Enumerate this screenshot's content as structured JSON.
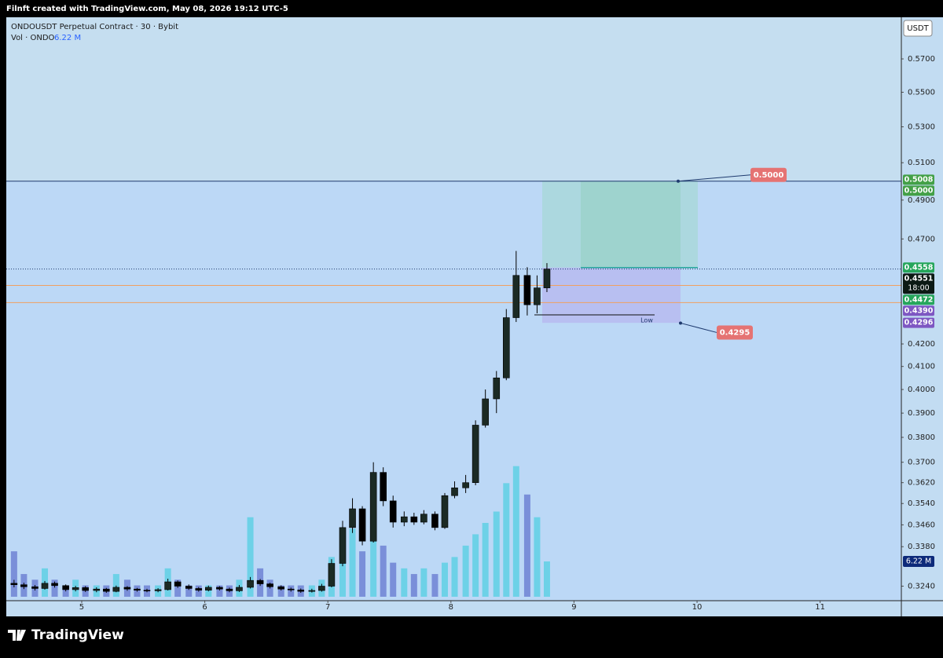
{
  "header": {
    "credit": "Filnft created with TradingView.com, May 08, 2026 19:12 UTC-5",
    "symbol": "ONDOUSDT Perpetual Contract · 30 · Bybit",
    "vol_label": "Vol · ONDO",
    "currency": "USDT",
    "brand": "TradingView"
  },
  "chart_data": {
    "type": "candlestick",
    "log": true,
    "x": [
      4.45,
      4.53,
      4.62,
      4.7,
      4.78,
      4.87,
      4.95,
      5.03,
      5.12,
      5.2,
      5.28,
      5.37,
      5.45,
      5.53,
      5.62,
      5.7,
      5.78,
      5.87,
      5.95,
      6.03,
      6.12,
      6.2,
      6.28,
      6.37,
      6.45,
      6.53,
      6.62,
      6.7,
      6.78,
      6.87,
      6.95,
      7.03,
      7.12,
      7.2,
      7.28,
      7.37,
      7.45,
      7.53,
      7.62,
      7.7,
      7.78,
      7.87,
      7.95,
      8.03,
      8.12,
      8.2,
      8.28,
      8.37,
      8.45,
      8.53,
      8.62,
      8.7,
      8.78
    ],
    "ohlc": [
      [
        0.325,
        0.3262,
        0.3236,
        0.3245
      ],
      [
        0.3245,
        0.3252,
        0.323,
        0.3238
      ],
      [
        0.3238,
        0.3244,
        0.3225,
        0.3232
      ],
      [
        0.3232,
        0.3258,
        0.3228,
        0.325
      ],
      [
        0.325,
        0.3256,
        0.3235,
        0.3242
      ],
      [
        0.3242,
        0.3246,
        0.3222,
        0.3228
      ],
      [
        0.3228,
        0.3241,
        0.3222,
        0.3235
      ],
      [
        0.3235,
        0.324,
        0.322,
        0.3225
      ],
      [
        0.3225,
        0.3236,
        0.3219,
        0.323
      ],
      [
        0.323,
        0.3234,
        0.3217,
        0.3222
      ],
      [
        0.3222,
        0.3242,
        0.3219,
        0.3236
      ],
      [
        0.3236,
        0.324,
        0.3224,
        0.323
      ],
      [
        0.323,
        0.3234,
        0.3221,
        0.3226
      ],
      [
        0.3226,
        0.3231,
        0.3219,
        0.3224
      ],
      [
        0.3224,
        0.3233,
        0.3219,
        0.3228
      ],
      [
        0.3228,
        0.3266,
        0.3225,
        0.3255
      ],
      [
        0.3255,
        0.326,
        0.3234,
        0.324
      ],
      [
        0.324,
        0.3246,
        0.3227,
        0.3232
      ],
      [
        0.3232,
        0.3237,
        0.3221,
        0.3226
      ],
      [
        0.3226,
        0.3242,
        0.3222,
        0.3236
      ],
      [
        0.3236,
        0.324,
        0.3225,
        0.323
      ],
      [
        0.323,
        0.3235,
        0.3219,
        0.3224
      ],
      [
        0.3224,
        0.3244,
        0.322,
        0.3236
      ],
      [
        0.3236,
        0.3272,
        0.3232,
        0.326
      ],
      [
        0.326,
        0.3265,
        0.3241,
        0.3248
      ],
      [
        0.3248,
        0.3252,
        0.3232,
        0.3238
      ],
      [
        0.3238,
        0.3243,
        0.3225,
        0.323
      ],
      [
        0.323,
        0.3235,
        0.3221,
        0.3227
      ],
      [
        0.3227,
        0.3232,
        0.3217,
        0.3222
      ],
      [
        0.3222,
        0.3231,
        0.3218,
        0.3225
      ],
      [
        0.3225,
        0.3248,
        0.3221,
        0.324
      ],
      [
        0.324,
        0.3335,
        0.3236,
        0.332
      ],
      [
        0.332,
        0.3475,
        0.331,
        0.345
      ],
      [
        0.345,
        0.356,
        0.343,
        0.352
      ],
      [
        0.352,
        0.353,
        0.3385,
        0.34
      ],
      [
        0.34,
        0.37,
        0.3395,
        0.366
      ],
      [
        0.366,
        0.368,
        0.353,
        0.355
      ],
      [
        0.355,
        0.357,
        0.345,
        0.347
      ],
      [
        0.347,
        0.351,
        0.3455,
        0.349
      ],
      [
        0.349,
        0.3505,
        0.346,
        0.347
      ],
      [
        0.347,
        0.3515,
        0.3462,
        0.35
      ],
      [
        0.35,
        0.351,
        0.344,
        0.345
      ],
      [
        0.345,
        0.358,
        0.3445,
        0.357
      ],
      [
        0.357,
        0.3625,
        0.356,
        0.36
      ],
      [
        0.36,
        0.365,
        0.358,
        0.362
      ],
      [
        0.362,
        0.387,
        0.361,
        0.385
      ],
      [
        0.385,
        0.4,
        0.384,
        0.396
      ],
      [
        0.396,
        0.408,
        0.39,
        0.405
      ],
      [
        0.405,
        0.436,
        0.404,
        0.432
      ],
      [
        0.432,
        0.464,
        0.43,
        0.452
      ],
      [
        0.452,
        0.456,
        0.433,
        0.438
      ],
      [
        0.438,
        0.452,
        0.434,
        0.446
      ],
      [
        0.446,
        0.458,
        0.444,
        0.4551
      ]
    ],
    "up_color": "#1b2a24",
    "down_color": "#000000",
    "volume": {
      "values": [
        8,
        4,
        3,
        5,
        3,
        2,
        3,
        2,
        2,
        2,
        4,
        3,
        2,
        2,
        2,
        5,
        3,
        2,
        2,
        2,
        2,
        2,
        3,
        14,
        5,
        3,
        2,
        2,
        2,
        2,
        3,
        7,
        10,
        12,
        8,
        14,
        9,
        6,
        5,
        4,
        5,
        4,
        6,
        7,
        9,
        11,
        13,
        15,
        20,
        23,
        18,
        14,
        6.22
      ],
      "ylim": [
        0,
        30
      ],
      "up_color": "#5fd0e4",
      "down_color": "#6f82d4"
    },
    "volume_label": {
      "value": 6.22,
      "label": "6.22 M"
    },
    "xlim": [
      4.387,
      11.66
    ],
    "xticks": [
      5,
      6,
      7,
      8,
      9,
      10,
      11
    ],
    "ylim": [
      0.319,
      0.596
    ],
    "yticks": [
      {
        "value": 0.57,
        "label": "0.5700"
      },
      {
        "value": 0.55,
        "label": "0.5500"
      },
      {
        "value": 0.53,
        "label": "0.5300"
      },
      {
        "value": 0.51,
        "label": "0.5100"
      },
      {
        "value": 0.49,
        "label": "0.4900"
      },
      {
        "value": 0.47,
        "label": "0.4700"
      },
      {
        "value": 0.42,
        "label": "0.4200"
      },
      {
        "value": 0.41,
        "label": "0.4100"
      },
      {
        "value": 0.4,
        "label": "0.4000"
      },
      {
        "value": 0.39,
        "label": "0.3900"
      },
      {
        "value": 0.38,
        "label": "0.3800"
      },
      {
        "value": 0.37,
        "label": "0.3700"
      },
      {
        "value": 0.362,
        "label": "0.3620"
      },
      {
        "value": 0.354,
        "label": "0.3540"
      },
      {
        "value": 0.346,
        "label": "0.3460"
      },
      {
        "value": 0.338,
        "label": "0.3380"
      },
      {
        "value": 0.324,
        "label": "0.3240"
      }
    ],
    "price_labels": [
      {
        "value": 0.5008,
        "label": "0.5008",
        "color": "#43a047"
      },
      {
        "value": 0.5,
        "label": "0.5000",
        "color": "#43a047"
      },
      {
        "value": 0.4558,
        "label": "0.4558",
        "color": "#26a65b"
      },
      {
        "value": 0.4551,
        "label": "0.4551",
        "color": "#0c1a14"
      },
      {
        "value": 0.4472,
        "label": "0.4472",
        "color": "#26a65b"
      },
      {
        "value": 0.439,
        "label": "0.4390",
        "color": "#7e57c2"
      },
      {
        "value": 0.4296,
        "label": "0.4296",
        "color": "#7e57c2"
      }
    ],
    "time_label": "18:00",
    "levels": [
      {
        "value": 0.5,
        "color": "#1e3a6e"
      },
      {
        "value": 0.4472,
        "color": "#f0a060"
      },
      {
        "value": 0.439,
        "color": "#f0a060"
      }
    ],
    "last_price": 0.4551,
    "position": {
      "target": 0.5,
      "entry": 0.4558,
      "stop": 0.4296
    },
    "annotations": [
      {
        "value": 0.5,
        "label": "0.5000"
      },
      {
        "value": 0.4295,
        "label": "0.4295"
      }
    ],
    "low_label": "Low"
  }
}
